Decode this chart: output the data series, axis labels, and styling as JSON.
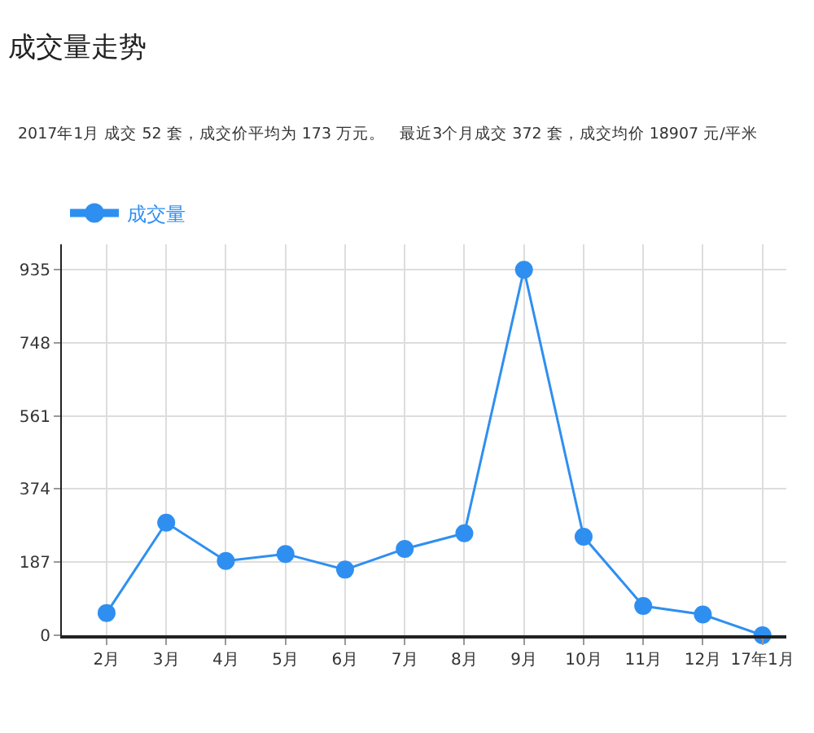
{
  "chart_data": {
    "type": "line",
    "title": "成交量走势",
    "subtitle": "2017年1月 成交 52 套，成交价平均为 173 万元。   最近3个月成交 372 套，成交均价 18907 元/平米",
    "categories": [
      "2月",
      "3月",
      "4月",
      "5月",
      "6月",
      "7月",
      "8月",
      "9月",
      "10月",
      "11月",
      "12月",
      "17年1月"
    ],
    "series": [
      {
        "name": "成交量",
        "color": "#2f8ff0",
        "values": [
          57,
          288,
          190,
          208,
          168,
          221,
          261,
          935,
          252,
          75,
          53,
          0
        ]
      }
    ],
    "ylim": [
      0,
      1000
    ],
    "yticks": [
      0,
      187,
      374,
      561,
      748,
      935
    ],
    "grid": true,
    "legend": "top left",
    "marker": "circle",
    "line_style": "solid"
  }
}
